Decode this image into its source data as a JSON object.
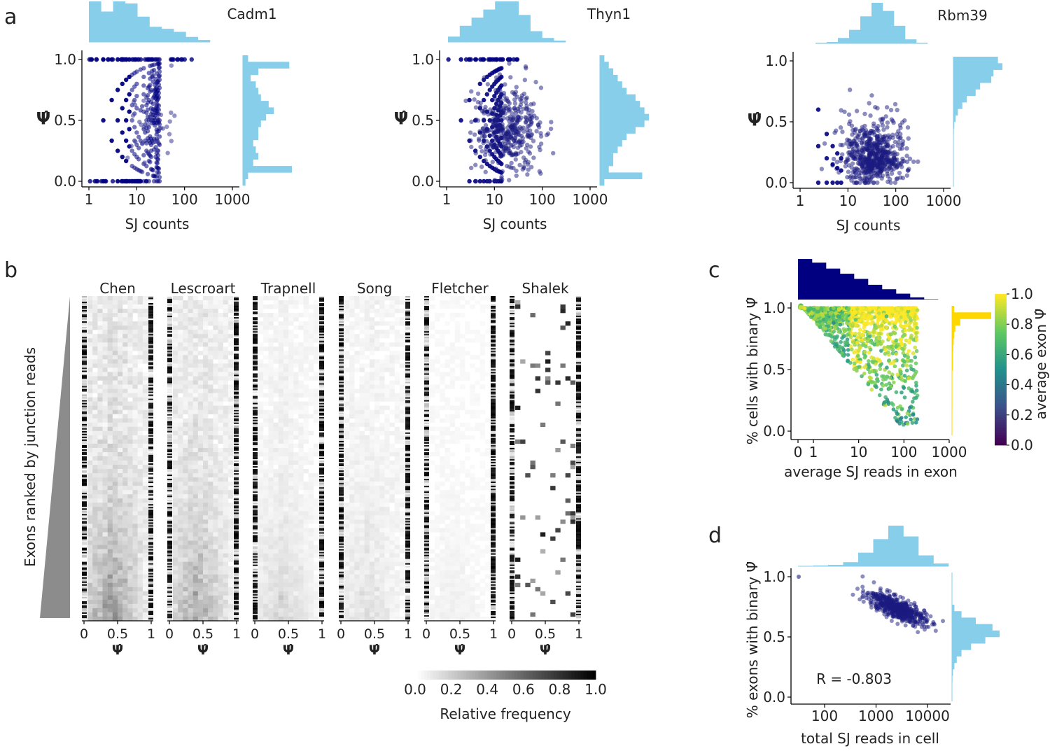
{
  "colors": {
    "hist": "#87ceeb",
    "scatter": "#1a1a80",
    "navy": "#000080",
    "axis": "#000000",
    "text": "#222222"
  },
  "panel_letters": [
    "a",
    "b",
    "c",
    "d"
  ],
  "chart_data": [
    {
      "id": "a1",
      "type": "scatter",
      "title": "Cadm1",
      "xlabel": "SJ counts",
      "ylabel": "Ψ̂",
      "xscale": "log",
      "xlim": [
        1,
        1000
      ],
      "ylim": [
        0,
        1
      ],
      "xticks": [
        "1",
        "10",
        "100",
        "1000"
      ],
      "yticks": [
        "0.0",
        "0.5",
        "1.0"
      ],
      "top_hist": [
        4,
        3,
        4,
        3.8,
        2.5,
        1.5,
        1.3,
        1.0,
        0.5,
        0.2
      ],
      "right_hist": [
        0.1,
        0.9,
        0.3,
        0.15,
        0.25,
        0.3,
        0.35,
        0.5,
        0.6,
        0.45,
        0.35,
        0.3,
        0.3,
        0.2,
        0.25,
        0.3,
        0.2,
        0.95,
        0.1,
        0.05
      ],
      "points_described": "discrete arcs of points at low counts, plus many points at psi 0 and psi 1"
    },
    {
      "id": "a2",
      "type": "scatter",
      "title": "Thyn1",
      "xlabel": "SJ counts",
      "ylabel": "Ψ̂",
      "xscale": "log",
      "xlim": [
        1,
        1000
      ],
      "ylim": [
        0,
        1
      ],
      "xticks": [
        "1",
        "10",
        "100",
        "1000"
      ],
      "yticks": [
        "0.0",
        "0.5",
        "1.0"
      ],
      "top_hist": [
        0.4,
        1.2,
        1.8,
        2.4,
        3.0,
        3.0,
        2.0,
        0.8,
        0.3,
        0.1
      ],
      "right_hist": [
        0.1,
        0.2,
        0.3,
        0.4,
        0.5,
        0.6,
        0.8,
        0.9,
        1.0,
        1.1,
        1.0,
        0.8,
        0.6,
        0.5,
        0.4,
        0.3,
        0.3,
        0.2,
        0.95,
        0.1
      ],
      "points_described": "dense cloud centered near psi 0.4 and 20 reads"
    },
    {
      "id": "a3",
      "type": "scatter",
      "title": "Rbm39",
      "xlabel": "SJ counts",
      "ylabel": "Ψ̂",
      "xscale": "log",
      "xlim": [
        1,
        1000
      ],
      "ylim": [
        0,
        1
      ],
      "xticks": [
        "1",
        "10",
        "100",
        "1000"
      ],
      "yticks": [
        "0.0",
        "0.5",
        "1.0"
      ],
      "top_hist": [
        0.05,
        0.1,
        0.4,
        1.0,
        2.0,
        3.0,
        2.4,
        1.3,
        0.3,
        0.05
      ],
      "right_hist": [
        1.0,
        1.1,
        0.9,
        0.85,
        0.6,
        0.5,
        0.3,
        0.2,
        0.1,
        0.05,
        0.02,
        0.01,
        0,
        0,
        0,
        0,
        0,
        0,
        0,
        0
      ],
      "points_described": "dense cloud centered near psi 0.2 and 40 reads"
    },
    {
      "id": "b",
      "type": "heatmap",
      "ylabel": "Exons ranked by junction reads",
      "datasets": [
        "Chen",
        "Lescroart",
        "Trapnell",
        "Song",
        "Fletcher",
        "Shalek"
      ],
      "xticks": [
        "0",
        "0.5",
        "1"
      ],
      "xlabel": "Ψ̂",
      "colorbar": {
        "label": "Relative frequency",
        "ticks": [
          "0.0",
          "0.2",
          "0.4",
          "0.6",
          "0.8",
          "1.0"
        ],
        "range": [
          0,
          1
        ]
      }
    },
    {
      "id": "c",
      "type": "scatter",
      "xlabel": "average SJ reads in exon",
      "ylabel": "% cells with binary Ψ̂",
      "xticks": [
        "0",
        "1",
        "10",
        "100",
        "1000"
      ],
      "yticks": [
        "0.0",
        "0.5",
        "1.0"
      ],
      "ylim": [
        0,
        1
      ],
      "top_hist": [
        5.5,
        5.0,
        4.2,
        3.5,
        2.8,
        2.0,
        1.4,
        0.8,
        0.3,
        0.05
      ],
      "right_hist": [
        0.05,
        0.95,
        0.2,
        0.08,
        0.05,
        0.04,
        0.03,
        0.02,
        0.02,
        0.02,
        0.01,
        0.01,
        0.01,
        0.01,
        0.01,
        0.01,
        0.005,
        0.005,
        0.005,
        0.005
      ],
      "colorbar": {
        "label": "average exon Ψ̂",
        "ticks": [
          "0.0",
          "0.2",
          "0.4",
          "0.6",
          "0.8",
          "1.0"
        ],
        "range": [
          0,
          1
        ],
        "colormap": "viridis (reversed)"
      }
    },
    {
      "id": "d",
      "type": "scatter",
      "xlabel": "total SJ reads in cell",
      "ylabel": "% exons with binary Ψ̂",
      "xticks": [
        "100",
        "1000",
        "10000"
      ],
      "yticks": [
        "0.0",
        "0.5",
        "1.0"
      ],
      "ylim": [
        0,
        1
      ],
      "annotation": "R = -0.803",
      "top_hist": [
        0.02,
        0.05,
        0.1,
        0.3,
        1.0,
        2.0,
        3.0,
        2.2,
        0.8,
        0.2
      ],
      "right_hist": [
        0,
        0,
        0,
        0,
        0,
        0.05,
        0.2,
        0.5,
        0.85,
        1.0,
        0.7,
        0.4,
        0.2,
        0.1,
        0.05,
        0.02,
        0.01,
        0,
        0,
        0
      ]
    }
  ]
}
